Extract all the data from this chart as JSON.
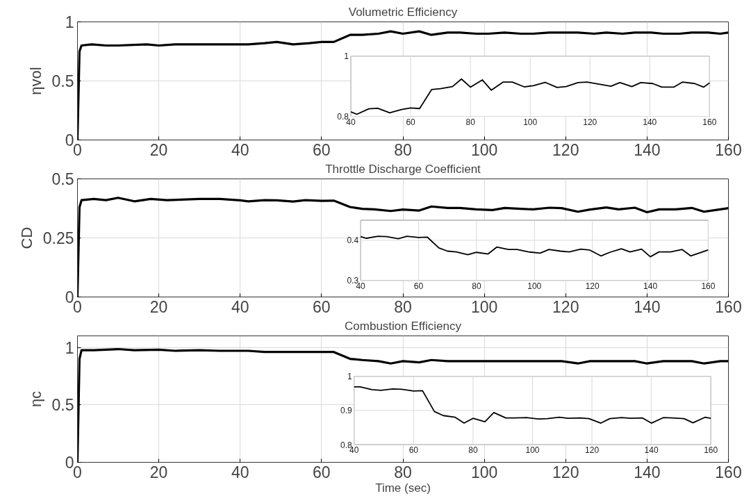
{
  "chart_data": [
    {
      "type": "line",
      "title": "Volumetric Efficiency",
      "ylabel": "ηvol",
      "xlim": [
        0,
        160
      ],
      "ylim": [
        0,
        1
      ],
      "xticks": [
        0,
        20,
        40,
        60,
        80,
        100,
        120,
        140,
        160
      ],
      "yticks": [
        0,
        0.5,
        1
      ],
      "grid": true,
      "x": [
        0,
        0.5,
        1,
        3.5,
        7,
        10,
        17,
        20,
        24,
        30,
        35,
        40,
        42,
        46,
        49,
        53,
        57,
        60,
        63,
        67,
        70,
        74,
        77,
        80,
        84,
        87,
        91,
        94,
        98,
        101,
        105,
        109,
        112,
        116,
        119,
        123,
        127,
        130,
        134,
        137,
        141,
        144,
        148,
        151,
        155,
        158,
        160
      ],
      "series": [
        {
          "color": "#000000",
          "values": [
            0,
            0.75,
            0.8,
            0.81,
            0.8,
            0.8,
            0.81,
            0.8,
            0.81,
            0.81,
            0.81,
            0.81,
            0.81,
            0.82,
            0.83,
            0.81,
            0.82,
            0.83,
            0.83,
            0.89,
            0.89,
            0.9,
            0.92,
            0.9,
            0.92,
            0.89,
            0.91,
            0.91,
            0.9,
            0.9,
            0.91,
            0.9,
            0.9,
            0.91,
            0.91,
            0.91,
            0.9,
            0.91,
            0.9,
            0.91,
            0.91,
            0.9,
            0.9,
            0.91,
            0.91,
            0.9,
            0.91
          ]
        }
      ]
    },
    {
      "type": "line",
      "xlim": [
        40,
        160
      ],
      "ylim": [
        0.8,
        1
      ],
      "xticks": [
        40,
        60,
        80,
        100,
        120,
        140,
        160
      ],
      "yticks": [
        0.8,
        1
      ],
      "grid": true,
      "x": [
        40,
        42,
        46,
        49,
        53,
        57,
        60,
        63,
        67,
        70,
        74,
        77,
        80,
        84,
        87,
        91,
        94,
        98,
        101,
        105,
        109,
        112,
        116,
        119,
        123,
        127,
        130,
        134,
        137,
        141,
        144,
        148,
        151,
        155,
        158,
        160
      ],
      "series": [
        {
          "color": "#000000",
          "values": [
            0.815,
            0.807,
            0.825,
            0.827,
            0.812,
            0.823,
            0.828,
            0.826,
            0.889,
            0.892,
            0.899,
            0.924,
            0.897,
            0.921,
            0.887,
            0.914,
            0.914,
            0.898,
            0.902,
            0.913,
            0.896,
            0.899,
            0.912,
            0.914,
            0.907,
            0.9,
            0.912,
            0.899,
            0.912,
            0.909,
            0.897,
            0.897,
            0.914,
            0.909,
            0.897,
            0.911
          ]
        }
      ]
    },
    {
      "type": "line",
      "title": "Throttle Discharge Coefficient",
      "ylabel": "CD",
      "xlim": [
        0,
        160
      ],
      "ylim": [
        0,
        0.5
      ],
      "xticks": [
        0,
        20,
        40,
        60,
        80,
        100,
        120,
        140,
        160
      ],
      "yticks": [
        0,
        0.25,
        0.5
      ],
      "grid": true,
      "x": [
        0,
        0.5,
        1,
        4,
        7,
        10,
        14,
        18,
        22,
        30,
        35,
        40,
        42,
        46,
        49,
        53,
        56,
        60,
        63,
        67,
        70,
        73,
        77,
        80,
        84,
        87,
        91,
        94,
        98,
        102,
        105,
        109,
        112,
        116,
        119,
        123,
        126,
        130,
        133,
        137,
        140,
        143,
        147,
        151,
        154,
        158,
        160
      ],
      "series": [
        {
          "color": "#000000",
          "values": [
            0,
            0.38,
            0.41,
            0.415,
            0.41,
            0.42,
            0.405,
            0.415,
            0.41,
            0.415,
            0.415,
            0.409,
            0.405,
            0.41,
            0.409,
            0.404,
            0.41,
            0.407,
            0.408,
            0.381,
            0.373,
            0.371,
            0.364,
            0.37,
            0.366,
            0.383,
            0.377,
            0.377,
            0.371,
            0.368,
            0.377,
            0.373,
            0.371,
            0.378,
            0.376,
            0.361,
            0.37,
            0.379,
            0.371,
            0.378,
            0.359,
            0.371,
            0.371,
            0.377,
            0.361,
            0.371,
            0.376
          ]
        }
      ]
    },
    {
      "type": "line",
      "xlim": [
        40,
        160
      ],
      "ylim": [
        0.3,
        0.45
      ],
      "xticks": [
        40,
        60,
        80,
        100,
        120,
        140,
        160
      ],
      "yticks": [
        0.3,
        0.4
      ],
      "grid": true,
      "x": [
        40,
        42,
        46,
        49,
        53,
        56,
        60,
        63,
        67,
        70,
        73,
        77,
        80,
        84,
        87,
        91,
        94,
        98,
        102,
        105,
        109,
        112,
        116,
        119,
        123,
        126,
        130,
        133,
        137,
        140,
        143,
        147,
        151,
        154,
        158,
        160
      ],
      "series": [
        {
          "color": "#000000",
          "values": [
            0.409,
            0.405,
            0.41,
            0.409,
            0.404,
            0.41,
            0.407,
            0.408,
            0.381,
            0.373,
            0.371,
            0.364,
            0.37,
            0.366,
            0.383,
            0.377,
            0.377,
            0.371,
            0.368,
            0.377,
            0.373,
            0.371,
            0.378,
            0.376,
            0.361,
            0.37,
            0.379,
            0.371,
            0.378,
            0.359,
            0.371,
            0.371,
            0.377,
            0.361,
            0.371,
            0.376
          ]
        }
      ]
    },
    {
      "type": "line",
      "title": "Combustion Efficiency",
      "xlabel": "Time (sec)",
      "ylabel": "ηc",
      "xlim": [
        0,
        160
      ],
      "ylim": [
        0,
        1.1
      ],
      "xticks": [
        0,
        20,
        40,
        60,
        80,
        100,
        120,
        140,
        160
      ],
      "yticks": [
        0,
        0.5,
        1
      ],
      "grid": true,
      "x": [
        0,
        0.5,
        1,
        4,
        10,
        14,
        20,
        24,
        30,
        35,
        40,
        42,
        46,
        49,
        53,
        56,
        60,
        63,
        67,
        70,
        74,
        77,
        80,
        84,
        87,
        91,
        94,
        98,
        102,
        105,
        109,
        112,
        116,
        119,
        123,
        126,
        130,
        133,
        137,
        140,
        144,
        147,
        151,
        154,
        158,
        160
      ],
      "series": [
        {
          "color": "#000000",
          "values": [
            0,
            0.9,
            0.975,
            0.975,
            0.985,
            0.975,
            0.98,
            0.97,
            0.975,
            0.97,
            0.97,
            0.97,
            0.96,
            0.96,
            0.96,
            0.96,
            0.96,
            0.96,
            0.9,
            0.89,
            0.88,
            0.86,
            0.88,
            0.87,
            0.89,
            0.88,
            0.88,
            0.88,
            0.88,
            0.88,
            0.88,
            0.88,
            0.88,
            0.88,
            0.86,
            0.88,
            0.88,
            0.88,
            0.88,
            0.86,
            0.88,
            0.88,
            0.88,
            0.86,
            0.88,
            0.88
          ]
        }
      ]
    },
    {
      "type": "line",
      "xlim": [
        40,
        160
      ],
      "ylim": [
        0.8,
        1
      ],
      "xticks": [
        40,
        60,
        80,
        100,
        120,
        140,
        160
      ],
      "yticks": [
        0.8,
        0.9,
        1
      ],
      "grid": true,
      "x": [
        40,
        42,
        46,
        49,
        53,
        56,
        60,
        63,
        67,
        70,
        74,
        77,
        80,
        84,
        87,
        91,
        94,
        98,
        102,
        105,
        109,
        112,
        116,
        119,
        123,
        126,
        130,
        133,
        137,
        140,
        144,
        147,
        151,
        154,
        158,
        160
      ],
      "series": [
        {
          "color": "#000000",
          "values": [
            0.969,
            0.969,
            0.961,
            0.959,
            0.963,
            0.962,
            0.957,
            0.958,
            0.897,
            0.885,
            0.88,
            0.863,
            0.877,
            0.867,
            0.894,
            0.878,
            0.878,
            0.879,
            0.875,
            0.876,
            0.88,
            0.877,
            0.878,
            0.876,
            0.863,
            0.876,
            0.879,
            0.877,
            0.878,
            0.863,
            0.879,
            0.878,
            0.876,
            0.864,
            0.88,
            0.877
          ]
        }
      ]
    }
  ]
}
